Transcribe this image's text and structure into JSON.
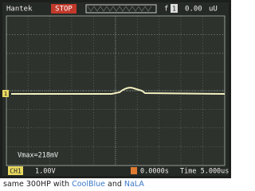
{
  "screen": {
    "brand": "Hantek",
    "status": "STOP",
    "trigger_icon": "f",
    "trigger_channel": "1",
    "trigger_level": "0.00",
    "trigger_unit": "uU",
    "channel_marker": "1",
    "measurement": "Vmax=218mV",
    "channel": "CH1",
    "channel_scale": "1.00V",
    "trigger_position": "0.0000s",
    "timebase": "Time 5.000us"
  },
  "caption": {
    "text": "same 300HP with",
    "link1": "CoolBlue",
    "joiner": "and",
    "link2": "NaLA"
  }
}
